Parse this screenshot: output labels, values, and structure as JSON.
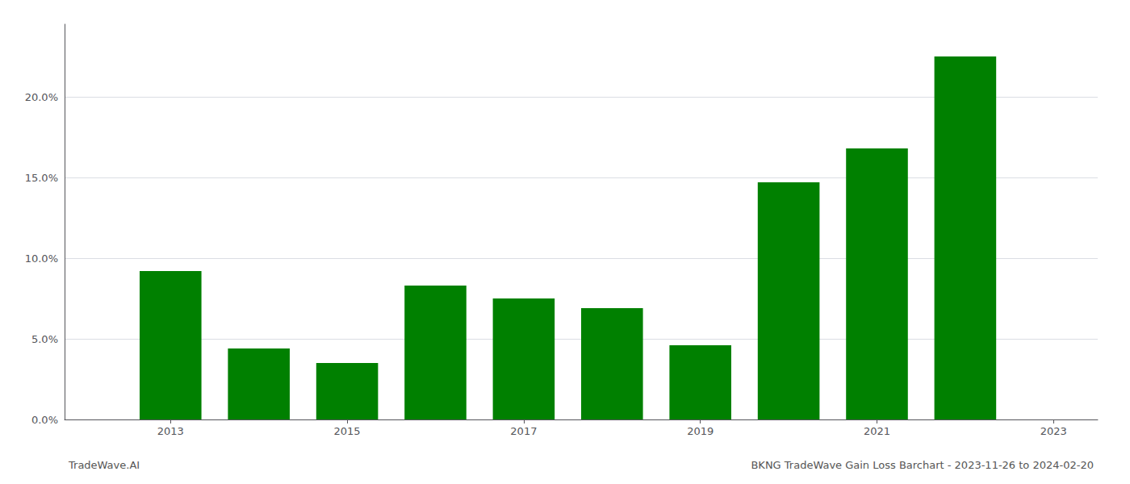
{
  "chart_data": {
    "type": "bar",
    "title": "BKNG TradeWave Gain Loss Barchart - 2023-11-26 to 2024-02-20",
    "annotations": [
      "TradeWave.AI"
    ],
    "x": [
      2013,
      2014,
      2015,
      2016,
      2017,
      2018,
      2019,
      2020,
      2021,
      2022
    ],
    "values": [
      0.092,
      0.044,
      0.035,
      0.083,
      0.075,
      0.069,
      0.046,
      0.147,
      0.168,
      0.225
    ],
    "color": "#008000",
    "xlim": [
      2011.8,
      2023.5
    ],
    "xticks": [
      2013,
      2015,
      2017,
      2019,
      2021,
      2023
    ],
    "ylim": [
      0,
      0.245
    ],
    "yticks": [
      {
        "value": 0.0,
        "label": "0.0%"
      },
      {
        "value": 0.05,
        "label": "5.0%"
      },
      {
        "value": 0.1,
        "label": "10.0%"
      },
      {
        "value": 0.15,
        "label": "15.0%"
      },
      {
        "value": 0.2,
        "label": "20.0%"
      }
    ],
    "grid": true
  }
}
